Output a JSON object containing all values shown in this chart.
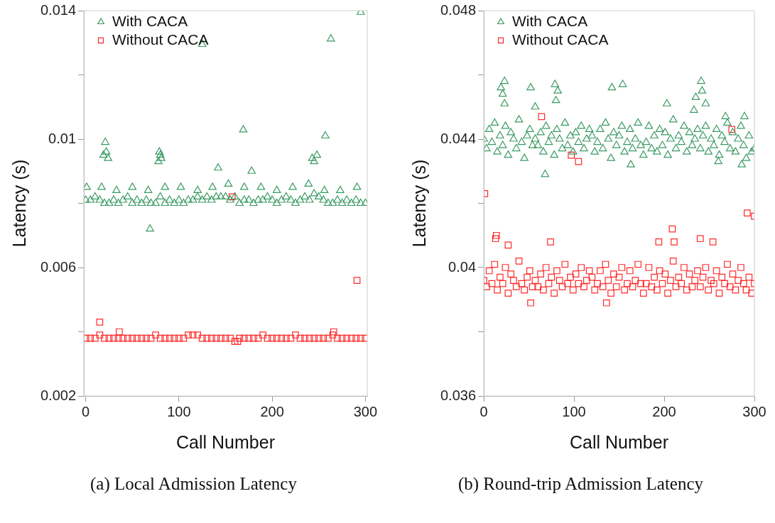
{
  "chart_data": [
    {
      "type": "scatter",
      "xlabel": "Call Number",
      "ylabel": "Latency (s)",
      "xlim": [
        -2,
        302
      ],
      "ylim": [
        0.002,
        0.014
      ],
      "xticks": [
        0,
        100,
        200,
        300
      ],
      "yticks": [
        0.002,
        {
          "value": 0.004,
          "label": null
        },
        0.006,
        {
          "value": 0.008,
          "label": null
        },
        0.01,
        {
          "value": 0.012,
          "label": null
        },
        0.014
      ],
      "grid": false,
      "legend": "top left",
      "annotations": [
        "(a) Local Admission Latency"
      ],
      "series": [
        {
          "name": "With CACA",
          "color": "#3a9a63",
          "marker": "triangle",
          "x": [
            0,
            5,
            10,
            15,
            20,
            25,
            30,
            35,
            40,
            45,
            50,
            55,
            60,
            65,
            70,
            75,
            80,
            85,
            90,
            95,
            100,
            105,
            110,
            115,
            120,
            125,
            130,
            135,
            140,
            145,
            150,
            155,
            160,
            165,
            170,
            175,
            180,
            185,
            190,
            195,
            200,
            205,
            210,
            215,
            220,
            225,
            230,
            235,
            240,
            245,
            250,
            255,
            260,
            265,
            270,
            275,
            280,
            285,
            290,
            295,
            300,
            1,
            17,
            33,
            50,
            67,
            85,
            102,
            120,
            136,
            153,
            170,
            188,
            205,
            222,
            239,
            256,
            273,
            291,
            295,
            263,
            125,
            169,
            257,
            21,
            19,
            22,
            24,
            78,
            79,
            80,
            81,
            142,
            178,
            243,
            245,
            248,
            69
          ],
          "values": [
            0.0081,
            0.0081,
            0.0082,
            0.0081,
            0.008,
            0.008,
            0.0081,
            0.008,
            0.0081,
            0.0082,
            0.008,
            0.0081,
            0.008,
            0.0081,
            0.008,
            0.008,
            0.0082,
            0.008,
            0.0081,
            0.008,
            0.0081,
            0.008,
            0.0081,
            0.0081,
            0.0082,
            0.0081,
            0.0082,
            0.0081,
            0.0082,
            0.0082,
            0.0082,
            0.0081,
            0.0082,
            0.008,
            0.0081,
            0.0081,
            0.008,
            0.0081,
            0.0081,
            0.0082,
            0.0081,
            0.008,
            0.0081,
            0.0082,
            0.0081,
            0.008,
            0.0081,
            0.0082,
            0.0081,
            0.0083,
            0.0082,
            0.0081,
            0.008,
            0.008,
            0.0081,
            0.008,
            0.0081,
            0.008,
            0.0081,
            0.008,
            0.008,
            0.0085,
            0.0085,
            0.0084,
            0.0085,
            0.0084,
            0.0085,
            0.0085,
            0.0084,
            0.0085,
            0.0086,
            0.0085,
            0.0085,
            0.0084,
            0.0085,
            0.0086,
            0.0084,
            0.0084,
            0.0085,
            0.01395,
            0.01312,
            0.01295,
            0.01029,
            0.0101,
            0.0099,
            0.0095,
            0.0096,
            0.0094,
            0.0093,
            0.0096,
            0.0095,
            0.0094,
            0.0091,
            0.009,
            0.0094,
            0.0093,
            0.0095,
            0.0072
          ]
        },
        {
          "name": "Without CACA",
          "color": "#ff2a2a",
          "marker": "square",
          "x": [
            0,
            5,
            10,
            15,
            20,
            25,
            30,
            35,
            40,
            45,
            50,
            55,
            60,
            65,
            70,
            75,
            80,
            85,
            90,
            95,
            100,
            105,
            110,
            115,
            120,
            125,
            130,
            135,
            140,
            145,
            150,
            155,
            160,
            165,
            170,
            175,
            180,
            185,
            190,
            195,
            200,
            205,
            210,
            215,
            220,
            225,
            230,
            235,
            240,
            245,
            250,
            255,
            260,
            265,
            270,
            275,
            280,
            285,
            290,
            295,
            300,
            15,
            36,
            266,
            163,
            291,
            157
          ],
          "values": [
            0.0038,
            0.0038,
            0.0038,
            0.0039,
            0.0038,
            0.0038,
            0.0038,
            0.0038,
            0.0038,
            0.0038,
            0.0038,
            0.0038,
            0.0038,
            0.0038,
            0.0038,
            0.0039,
            0.0038,
            0.0038,
            0.0038,
            0.0038,
            0.0038,
            0.0038,
            0.0039,
            0.0039,
            0.0039,
            0.0038,
            0.0038,
            0.0038,
            0.0038,
            0.0038,
            0.0038,
            0.0038,
            0.0037,
            0.0038,
            0.0038,
            0.0038,
            0.0038,
            0.0038,
            0.0039,
            0.0038,
            0.0038,
            0.0038,
            0.0038,
            0.0038,
            0.0038,
            0.0039,
            0.0038,
            0.0038,
            0.0038,
            0.0038,
            0.0038,
            0.0038,
            0.0038,
            0.0039,
            0.0038,
            0.0038,
            0.0038,
            0.0038,
            0.0038,
            0.0038,
            0.0038,
            0.0043,
            0.004,
            0.004,
            0.0037,
            0.0056,
            0.0082
          ]
        }
      ]
    },
    {
      "type": "scatter",
      "xlabel": "Call Number",
      "ylabel": "Latency (s)",
      "xlim": [
        0,
        300
      ],
      "ylim": [
        0.036,
        0.048
      ],
      "xticks": [
        0,
        100,
        200,
        300
      ],
      "yticks": [
        0.036,
        {
          "value": 0.038,
          "label": null
        },
        0.04,
        {
          "value": 0.042,
          "label": null
        },
        0.044,
        {
          "value": 0.046,
          "label": null
        },
        0.048
      ],
      "grid": false,
      "legend": "top left",
      "annotations": [
        "(b) Round-trip Admission Latency"
      ],
      "series": [
        {
          "name": "With CACA",
          "color": "#3a9a63",
          "marker": "triangle",
          "x": [
            0,
            3,
            6,
            9,
            12,
            15,
            18,
            21,
            24,
            27,
            30,
            33,
            36,
            39,
            42,
            45,
            48,
            51,
            54,
            57,
            60,
            63,
            66,
            69,
            72,
            75,
            78,
            81,
            84,
            87,
            90,
            93,
            96,
            99,
            102,
            105,
            108,
            111,
            114,
            117,
            120,
            123,
            126,
            129,
            132,
            135,
            138,
            141,
            144,
            147,
            150,
            153,
            156,
            159,
            162,
            165,
            168,
            171,
            174,
            177,
            180,
            183,
            186,
            189,
            192,
            195,
            198,
            201,
            204,
            207,
            210,
            213,
            216,
            219,
            222,
            225,
            228,
            231,
            234,
            237,
            240,
            243,
            246,
            249,
            252,
            255,
            258,
            261,
            264,
            267,
            270,
            273,
            276,
            279,
            282,
            285,
            288,
            291,
            294,
            297,
            300,
            23,
            19,
            52,
            79,
            82,
            142,
            154,
            241,
            242,
            235,
            246,
            203,
            233,
            21,
            23,
            57,
            80,
            68,
            163,
            286,
            260,
            268,
            289
          ],
          "values": [
            0.044,
            0.0437,
            0.0443,
            0.0439,
            0.0445,
            0.0436,
            0.0441,
            0.0438,
            0.0444,
            0.0435,
            0.0442,
            0.044,
            0.0437,
            0.0446,
            0.0439,
            0.0434,
            0.0441,
            0.0443,
            0.0438,
            0.044,
            0.0438,
            0.0442,
            0.0436,
            0.0444,
            0.0439,
            0.0441,
            0.0435,
            0.0443,
            0.044,
            0.0437,
            0.0445,
            0.0438,
            0.0441,
            0.0436,
            0.0442,
            0.0439,
            0.0444,
            0.0437,
            0.044,
            0.0443,
            0.0441,
            0.0436,
            0.0439,
            0.0443,
            0.0437,
            0.0445,
            0.044,
            0.0434,
            0.0442,
            0.0438,
            0.0441,
            0.0444,
            0.0436,
            0.0439,
            0.0443,
            0.0437,
            0.044,
            0.0445,
            0.0438,
            0.0435,
            0.0439,
            0.0444,
            0.0437,
            0.0441,
            0.0436,
            0.0443,
            0.0438,
            0.0442,
            0.0435,
            0.044,
            0.0446,
            0.0437,
            0.0441,
            0.0439,
            0.0444,
            0.0436,
            0.0442,
            0.0438,
            0.044,
            0.0443,
            0.0437,
            0.0441,
            0.0444,
            0.0436,
            0.044,
            0.0438,
            0.0443,
            0.0435,
            0.0441,
            0.0439,
            0.0445,
            0.0437,
            0.0442,
            0.0436,
            0.044,
            0.0444,
            0.0438,
            0.0434,
            0.0441,
            0.0436,
            0.0437,
            0.0458,
            0.0456,
            0.0456,
            0.0457,
            0.0455,
            0.0456,
            0.0457,
            0.0458,
            0.0455,
            0.0453,
            0.0451,
            0.0451,
            0.0449,
            0.0454,
            0.0451,
            0.045,
            0.0452,
            0.0429,
            0.0432,
            0.0432,
            0.0433,
            0.0447,
            0.0447
          ]
        },
        {
          "name": "Without CACA",
          "color": "#ff2a2a",
          "marker": "square",
          "x": [
            0,
            3,
            6,
            9,
            12,
            15,
            18,
            21,
            24,
            27,
            30,
            33,
            36,
            39,
            42,
            45,
            48,
            51,
            54,
            57,
            60,
            63,
            66,
            69,
            72,
            75,
            78,
            81,
            84,
            87,
            90,
            93,
            96,
            99,
            102,
            105,
            108,
            111,
            114,
            117,
            120,
            123,
            126,
            129,
            132,
            135,
            138,
            141,
            144,
            147,
            150,
            153,
            156,
            159,
            162,
            165,
            168,
            171,
            174,
            177,
            180,
            183,
            186,
            189,
            192,
            195,
            198,
            201,
            204,
            207,
            210,
            213,
            216,
            219,
            222,
            225,
            228,
            231,
            234,
            237,
            240,
            243,
            246,
            249,
            252,
            255,
            258,
            261,
            264,
            267,
            270,
            273,
            276,
            279,
            282,
            285,
            288,
            291,
            294,
            297,
            300,
            1,
            64,
            97,
            105,
            275,
            292,
            300,
            14,
            209,
            211,
            240,
            254,
            52,
            136,
            194,
            74,
            27,
            13
          ],
          "values": [
            0.0396,
            0.0394,
            0.0399,
            0.0395,
            0.0401,
            0.0393,
            0.0397,
            0.0395,
            0.04,
            0.0392,
            0.0398,
            0.0396,
            0.0394,
            0.0402,
            0.0395,
            0.0393,
            0.0397,
            0.0399,
            0.0394,
            0.0396,
            0.0394,
            0.0398,
            0.0393,
            0.04,
            0.0395,
            0.0397,
            0.0392,
            0.0399,
            0.0396,
            0.0394,
            0.0401,
            0.0395,
            0.0397,
            0.0393,
            0.0398,
            0.0395,
            0.04,
            0.0394,
            0.0396,
            0.0399,
            0.0397,
            0.0393,
            0.0395,
            0.0399,
            0.0394,
            0.0401,
            0.0396,
            0.0392,
            0.0398,
            0.0394,
            0.0397,
            0.04,
            0.0393,
            0.0395,
            0.0399,
            0.0394,
            0.0396,
            0.0401,
            0.0395,
            0.0392,
            0.0395,
            0.04,
            0.0394,
            0.0397,
            0.0393,
            0.0399,
            0.0395,
            0.0398,
            0.0392,
            0.0396,
            0.0402,
            0.0394,
            0.0397,
            0.0395,
            0.04,
            0.0393,
            0.0398,
            0.0394,
            0.0396,
            0.0399,
            0.0394,
            0.0397,
            0.04,
            0.0393,
            0.0396,
            0.0395,
            0.0399,
            0.0392,
            0.0397,
            0.0395,
            0.0401,
            0.0394,
            0.0398,
            0.0393,
            0.0396,
            0.04,
            0.0395,
            0.0393,
            0.0397,
            0.0392,
            0.0395,
            0.0423,
            0.0447,
            0.0435,
            0.0433,
            0.0443,
            0.0417,
            0.0416,
            0.041,
            0.0412,
            0.0408,
            0.0409,
            0.0408,
            0.0389,
            0.0389,
            0.0408,
            0.0408,
            0.0407,
            0.0409
          ]
        }
      ]
    }
  ]
}
